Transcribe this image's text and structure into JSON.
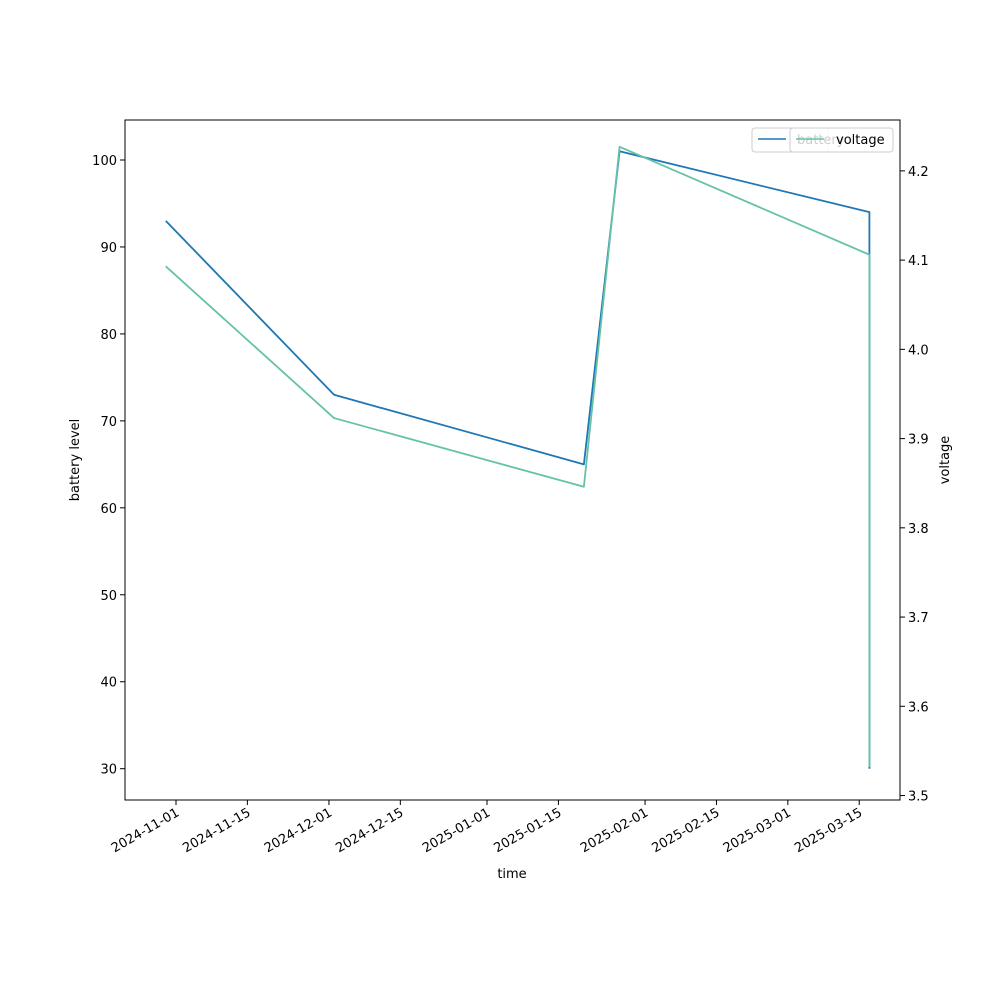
{
  "chart_data": {
    "type": "line",
    "title": "",
    "xlabel": "time",
    "ylabel_left": "battery level",
    "ylabel_right": "voltage",
    "x_ticks": [
      "2024-11-01",
      "2024-11-15",
      "2024-12-01",
      "2024-12-15",
      "2025-01-01",
      "2025-01-15",
      "2025-02-01",
      "2025-02-15",
      "2025-03-01",
      "2025-03-15"
    ],
    "y_left_ticks": [
      30,
      40,
      50,
      60,
      70,
      80,
      90,
      100
    ],
    "y_right_ticks": [
      "3.5",
      "3.6",
      "3.7",
      "3.8",
      "3.9",
      "4.0",
      "4.1",
      "4.2"
    ],
    "xlim": [
      "2024-10-22",
      "2025-03-23"
    ],
    "ylim_left": [
      26.4,
      104.6
    ],
    "ylim_right": [
      3.495,
      4.257
    ],
    "grid": false,
    "legend_placement": "top-right",
    "series": [
      {
        "name": "battery",
        "axis": "left",
        "color": "#1f77b4",
        "points": [
          {
            "x": "2024-10-30",
            "y": 93
          },
          {
            "x": "2024-12-02",
            "y": 73
          },
          {
            "x": "2025-01-20",
            "y": 65
          },
          {
            "x": "2025-01-27",
            "y": 101
          },
          {
            "x": "2025-03-17",
            "y": 94
          },
          {
            "x": "2025-03-17",
            "y": 88.7
          },
          {
            "x": "2025-03-17",
            "y": 30
          }
        ]
      },
      {
        "name": "voltage",
        "axis": "right",
        "color": "#66c2a5",
        "points": [
          {
            "x": "2024-10-30",
            "y": 4.093
          },
          {
            "x": "2024-12-02",
            "y": 3.923
          },
          {
            "x": "2025-01-20",
            "y": 3.846
          },
          {
            "x": "2025-01-27",
            "y": 4.227
          },
          {
            "x": "2025-03-17",
            "y": 4.106
          },
          {
            "x": "2025-03-17",
            "y": 3.532
          }
        ]
      }
    ]
  }
}
